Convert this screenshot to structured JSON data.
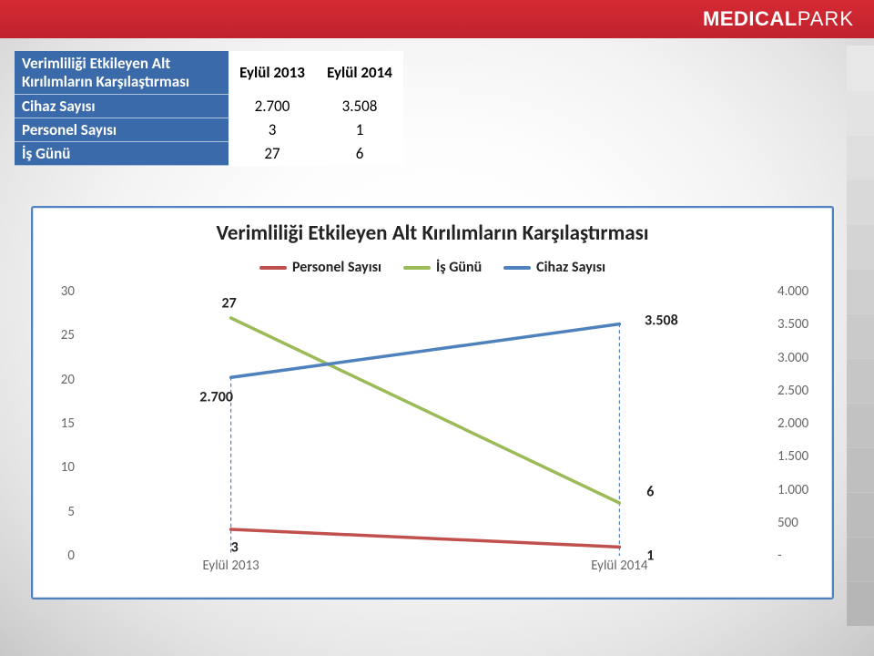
{
  "brand": {
    "name_bold": "MEDICAL",
    "name_thin": "PARK"
  },
  "table": {
    "header_label": "Verimliliği Etkileyen Alt Kırılımların Karşılaştırması",
    "columns": [
      "Eylül 2013",
      "Eylül 2014"
    ],
    "rows": [
      {
        "label": "Cihaz Sayısı",
        "values": [
          "2.700",
          "3.508"
        ]
      },
      {
        "label": "Personel Sayısı",
        "values": [
          "3",
          "1"
        ]
      },
      {
        "label": "İş Günü",
        "values": [
          "27",
          "6"
        ]
      }
    ]
  },
  "chart": {
    "title": "Verimliliği Etkileyen Alt Kırılımların Karşılaştırması",
    "legend": [
      {
        "name": "Personel Sayısı",
        "color": "#c0504d"
      },
      {
        "name": "İş Günü",
        "color": "#9bbb59"
      },
      {
        "name": "Cihaz Sayısı",
        "color": "#4f81bd"
      }
    ],
    "x_categories": [
      "Eylül 2013",
      "Eylül 2014"
    ],
    "y_left": {
      "min": 0,
      "max": 30,
      "step": 5
    },
    "y_right": {
      "min": 0,
      "max": 4000,
      "step": 500,
      "tick_labels": [
        "-",
        "500",
        "1.000",
        "1.500",
        "2.000",
        "2.500",
        "3.000",
        "3.500",
        "4.000"
      ]
    },
    "series": {
      "personel": {
        "axis": "left",
        "color": "#c0504d",
        "values": [
          3,
          1
        ],
        "labels": [
          "3",
          "1"
        ]
      },
      "isgunu": {
        "axis": "left",
        "color": "#9bbb59",
        "values": [
          27,
          6
        ],
        "labels": [
          "27",
          "6"
        ]
      },
      "cihaz": {
        "axis": "right",
        "color": "#4f81bd",
        "values": [
          2700,
          3508
        ],
        "labels": [
          "2.700",
          "3.508"
        ]
      }
    },
    "line_width": 3.5,
    "drop_line_color": "#4f81bd",
    "drop_line_dash": "3,4",
    "background": "#ffffff",
    "border_color": "#4f81bd",
    "title_fontsize": 23,
    "legend_fontsize": 16,
    "axis_fontsize": 15,
    "datalabel_fontsize": 16
  }
}
